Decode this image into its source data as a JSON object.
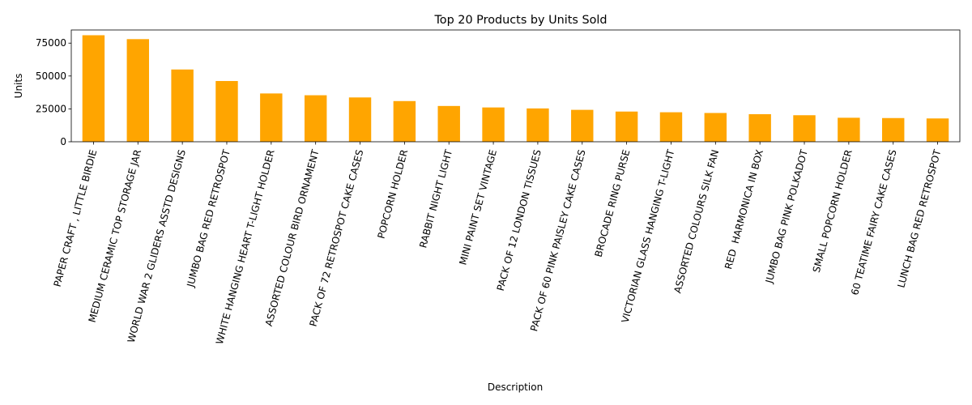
{
  "chart_data": {
    "type": "bar",
    "title": "Top 20 Products by Units Sold",
    "xlabel": "Description",
    "ylabel": "Units",
    "ylim": [
      0,
      85000
    ],
    "yticks": [
      0,
      25000,
      50000,
      75000
    ],
    "ytick_labels": [
      "0",
      "25000",
      "50000",
      "75000"
    ],
    "bar_color": "#FFA500",
    "grid": false,
    "legend": false,
    "categories": [
      "PAPER CRAFT , LITTLE BIRDIE",
      "MEDIUM CERAMIC TOP STORAGE JAR",
      "WORLD WAR 2 GLIDERS ASSTD DESIGNS",
      "JUMBO BAG RED RETROSPOT",
      "WHITE HANGING HEART T-LIGHT HOLDER",
      "ASSORTED COLOUR BIRD ORNAMENT",
      "PACK OF 72 RETROSPOT CAKE CASES",
      "POPCORN HOLDER",
      "RABBIT NIGHT LIGHT",
      "MINI PAINT SET VINTAGE",
      "PACK OF 12 LONDON TISSUES",
      "PACK OF 60 PINK PAISLEY CAKE CASES",
      "BROCADE RING PURSE",
      "VICTORIAN GLASS HANGING T-LIGHT",
      "ASSORTED COLOURS SILK FAN",
      "RED  HARMONICA IN BOX",
      "JUMBO BAG PINK POLKADOT",
      "SMALL POPCORN HOLDER",
      "60 TEATIME FAIRY CAKE CASES",
      "LUNCH BAG RED RETROSPOT"
    ],
    "values": [
      80995,
      78033,
      54951,
      46181,
      36725,
      35362,
      33693,
      30931,
      27202,
      26076,
      25345,
      24264,
      22963,
      22433,
      21876,
      20975,
      20165,
      18252,
      18015,
      17722
    ]
  }
}
